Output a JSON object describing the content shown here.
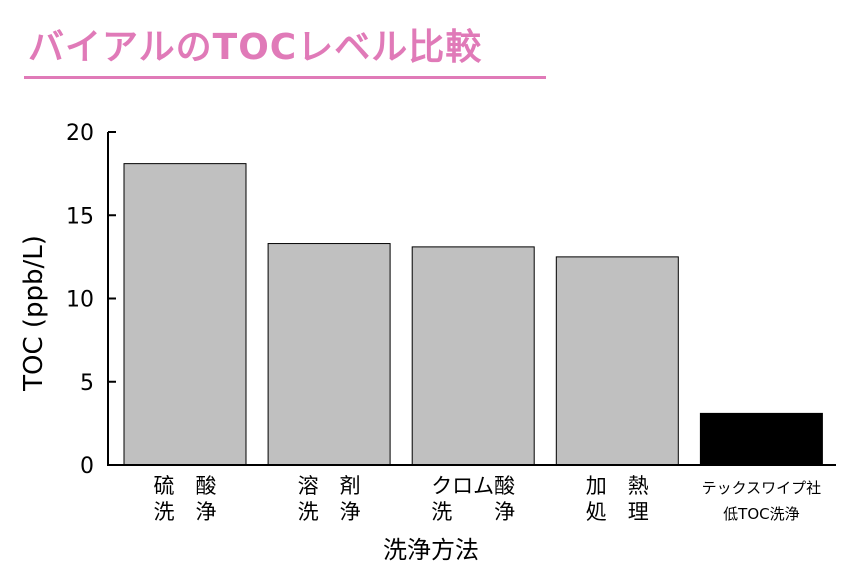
{
  "title": "バイアルのTOCレベル比較",
  "colors": {
    "title": "#e07ab8",
    "bar": "#c0c0c0",
    "bar_highlight": "#000000",
    "axis": "#000000"
  },
  "chart_data": {
    "type": "bar",
    "categories": [
      [
        "硫　酸",
        "洗　浄"
      ],
      [
        "溶　剤",
        "洗　浄"
      ],
      [
        "クロム酸",
        "洗　　浄"
      ],
      [
        "加　熱",
        "処　理"
      ],
      [
        "テックスワイプ社",
        "低TOC洗浄"
      ]
    ],
    "values": [
      18.1,
      13.3,
      13.1,
      12.5,
      3.1
    ],
    "highlight_index": 4,
    "ylabel": "TOC (ppb/L)",
    "xlabel": "洗浄方法",
    "ylim": [
      0,
      20
    ],
    "yticks": [
      0,
      5,
      10,
      15,
      20
    ],
    "grid": false
  }
}
